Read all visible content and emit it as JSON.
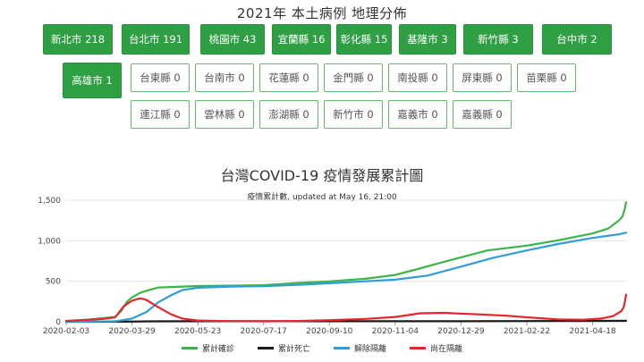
{
  "page": {
    "title": "2021年 本土病例 地理分佈"
  },
  "regions": [
    {
      "label": "新北市 218",
      "active": true
    },
    {
      "label": "台北市 191",
      "active": true
    },
    {
      "label": "桃園市 43",
      "active": true
    },
    {
      "label": "宜蘭縣 16",
      "active": true
    },
    {
      "label": "彰化縣 15",
      "active": true
    },
    {
      "label": "基隆市 3",
      "active": true
    },
    {
      "label": "新竹縣 3",
      "active": true
    },
    {
      "label": "台中市 2",
      "active": true
    },
    {
      "label": "高雄市 1",
      "active": true
    },
    {
      "label": "台東縣 0",
      "active": false
    },
    {
      "label": "台南市 0",
      "active": false
    },
    {
      "label": "花蓮縣 0",
      "active": false
    },
    {
      "label": "金門縣 0",
      "active": false
    },
    {
      "label": "南投縣 0",
      "active": false
    },
    {
      "label": "屏東縣 0",
      "active": false
    },
    {
      "label": "苗栗縣 0",
      "active": false
    },
    {
      "label": "連江縣 0",
      "active": false
    },
    {
      "label": "雲林縣 0",
      "active": false
    },
    {
      "label": "澎湖縣 0",
      "active": false
    },
    {
      "label": "新竹市 0",
      "active": false
    },
    {
      "label": "嘉義市 0",
      "active": false
    },
    {
      "label": "嘉義縣 0",
      "active": false
    }
  ],
  "chart_data": {
    "type": "line",
    "title": "台灣COVID-19 疫情發展累計圖",
    "subtitle": "疫情累計數, updated at May 16, 21:00",
    "xlabel": "",
    "ylabel": "",
    "x_ticks": [
      "2020-02-03",
      "2020-03-29",
      "2020-05-23",
      "2020-07-17",
      "2020-09-10",
      "2020-11-04",
      "2020-12-29",
      "2021-02-22",
      "2021-04-18"
    ],
    "x_range": [
      "2020-02-03",
      "2021-05-16"
    ],
    "y_ticks": [
      0,
      500,
      1000,
      1500
    ],
    "y_tick_labels": [
      "0",
      "500",
      "1,000",
      "1,500"
    ],
    "ylim": [
      0,
      1500
    ],
    "grid": true,
    "legend_position": "bottom",
    "series": [
      {
        "name": "累計確診",
        "color": "#3cb44b",
        "points": [
          [
            "2020-02-03",
            10
          ],
          [
            "2020-02-20",
            25
          ],
          [
            "2020-03-05",
            45
          ],
          [
            "2020-03-15",
            60
          ],
          [
            "2020-03-20",
            135
          ],
          [
            "2020-03-25",
            250
          ],
          [
            "2020-03-29",
            300
          ],
          [
            "2020-04-05",
            360
          ],
          [
            "2020-04-12",
            390
          ],
          [
            "2020-04-20",
            422
          ],
          [
            "2020-05-01",
            429
          ],
          [
            "2020-05-23",
            441
          ],
          [
            "2020-06-20",
            446
          ],
          [
            "2020-07-17",
            451
          ],
          [
            "2020-08-15",
            480
          ],
          [
            "2020-09-10",
            498
          ],
          [
            "2020-10-10",
            530
          ],
          [
            "2020-11-04",
            578
          ],
          [
            "2020-11-20",
            640
          ],
          [
            "2020-12-10",
            720
          ],
          [
            "2020-12-29",
            795
          ],
          [
            "2021-01-20",
            880
          ],
          [
            "2021-02-22",
            940
          ],
          [
            "2021-03-20",
            1005
          ],
          [
            "2021-04-18",
            1090
          ],
          [
            "2021-05-01",
            1150
          ],
          [
            "2021-05-10",
            1250
          ],
          [
            "2021-05-13",
            1300
          ],
          [
            "2021-05-15",
            1400
          ],
          [
            "2021-05-16",
            1475
          ]
        ]
      },
      {
        "name": "累計死亡",
        "color": "#1a1a1a",
        "points": [
          [
            "2020-02-03",
            0
          ],
          [
            "2020-03-20",
            1
          ],
          [
            "2020-04-15",
            6
          ],
          [
            "2020-05-23",
            7
          ],
          [
            "2020-09-10",
            7
          ],
          [
            "2020-12-29",
            7
          ],
          [
            "2021-02-22",
            9
          ],
          [
            "2021-04-18",
            11
          ],
          [
            "2021-05-16",
            12
          ]
        ]
      },
      {
        "name": "解除隔離",
        "color": "#2f9ed8",
        "points": [
          [
            "2020-02-03",
            0
          ],
          [
            "2020-03-15",
            5
          ],
          [
            "2020-03-29",
            40
          ],
          [
            "2020-04-10",
            120
          ],
          [
            "2020-04-20",
            240
          ],
          [
            "2020-05-01",
            330
          ],
          [
            "2020-05-10",
            390
          ],
          [
            "2020-05-23",
            420
          ],
          [
            "2020-06-20",
            435
          ],
          [
            "2020-07-17",
            440
          ],
          [
            "2020-08-15",
            455
          ],
          [
            "2020-09-10",
            475
          ],
          [
            "2020-10-10",
            500
          ],
          [
            "2020-11-04",
            520
          ],
          [
            "2020-12-01",
            570
          ],
          [
            "2020-12-29",
            680
          ],
          [
            "2021-01-25",
            790
          ],
          [
            "2021-02-22",
            880
          ],
          [
            "2021-03-20",
            960
          ],
          [
            "2021-04-18",
            1035
          ],
          [
            "2021-05-10",
            1080
          ],
          [
            "2021-05-16",
            1100
          ]
        ]
      },
      {
        "name": "尚在隔離",
        "color": "#e6262a",
        "points": [
          [
            "2020-02-03",
            10
          ],
          [
            "2020-03-05",
            35
          ],
          [
            "2020-03-15",
            55
          ],
          [
            "2020-03-22",
            190
          ],
          [
            "2020-03-29",
            260
          ],
          [
            "2020-04-05",
            290
          ],
          [
            "2020-04-10",
            270
          ],
          [
            "2020-04-20",
            180
          ],
          [
            "2020-05-01",
            90
          ],
          [
            "2020-05-10",
            40
          ],
          [
            "2020-05-23",
            15
          ],
          [
            "2020-06-20",
            8
          ],
          [
            "2020-07-17",
            6
          ],
          [
            "2020-08-15",
            10
          ],
          [
            "2020-09-10",
            20
          ],
          [
            "2020-10-10",
            35
          ],
          [
            "2020-11-04",
            60
          ],
          [
            "2020-11-25",
            105
          ],
          [
            "2020-12-15",
            110
          ],
          [
            "2020-12-29",
            100
          ],
          [
            "2021-01-15",
            90
          ],
          [
            "2021-02-05",
            75
          ],
          [
            "2021-02-22",
            55
          ],
          [
            "2021-03-20",
            30
          ],
          [
            "2021-04-10",
            25
          ],
          [
            "2021-04-25",
            40
          ],
          [
            "2021-05-05",
            70
          ],
          [
            "2021-05-12",
            130
          ],
          [
            "2021-05-14",
            180
          ],
          [
            "2021-05-15",
            250
          ],
          [
            "2021-05-16",
            335
          ]
        ]
      }
    ]
  }
}
